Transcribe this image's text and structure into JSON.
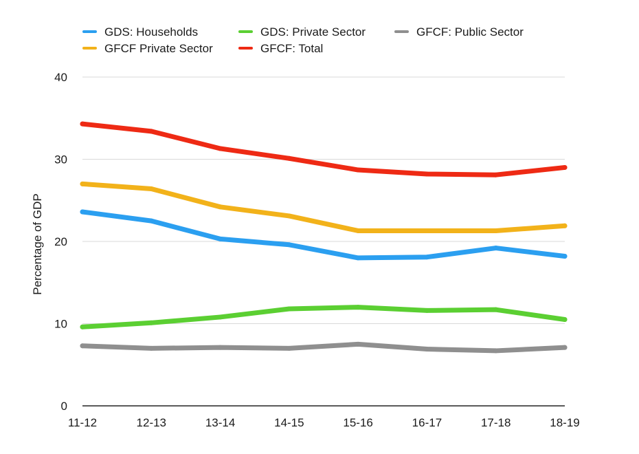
{
  "chart_data": {
    "type": "line",
    "title": "",
    "xlabel": "",
    "ylabel": "Percentage of GDP",
    "ylim": [
      0,
      40
    ],
    "yticks": [
      0,
      10,
      20,
      30,
      40
    ],
    "grid": true,
    "legend_position": "top",
    "categories": [
      "11-12",
      "12-13",
      "13-14",
      "14-15",
      "15-16",
      "16-17",
      "17-18",
      "18-19"
    ],
    "series": [
      {
        "name": "GDS: Households",
        "color": "#2b9ff0",
        "values": [
          23.6,
          22.5,
          20.3,
          19.6,
          18.0,
          18.1,
          19.2,
          18.2
        ]
      },
      {
        "name": "GDS: Private Sector",
        "color": "#5bcf32",
        "values": [
          9.6,
          10.1,
          10.8,
          11.8,
          12.0,
          11.6,
          11.7,
          10.5
        ]
      },
      {
        "name": "GFCF: Public Sector",
        "color": "#8f8f8f",
        "values": [
          7.3,
          7.0,
          7.1,
          7.0,
          7.5,
          6.9,
          6.7,
          7.1
        ]
      },
      {
        "name": "GFCF Private Sector",
        "color": "#f2b21a",
        "values": [
          27.0,
          26.4,
          24.2,
          23.1,
          21.3,
          21.3,
          21.3,
          21.9
        ]
      },
      {
        "name": "GFCF: Total",
        "color": "#ee2a14",
        "values": [
          34.3,
          33.4,
          31.3,
          30.1,
          28.7,
          28.2,
          28.1,
          29.0
        ]
      }
    ]
  }
}
